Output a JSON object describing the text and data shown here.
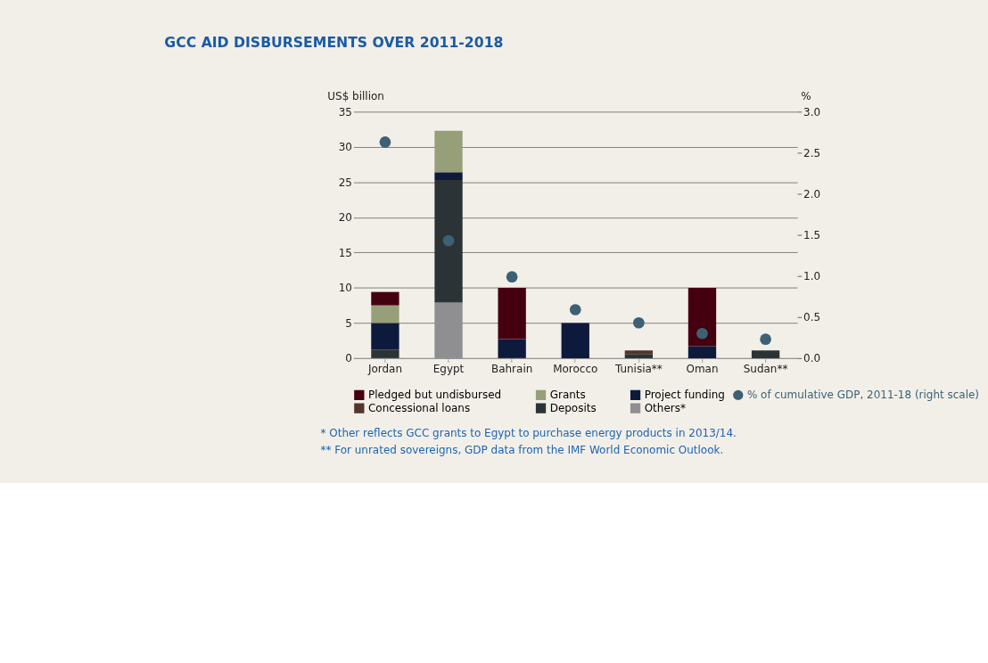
{
  "chart_data": {
    "type": "bar",
    "title": "GCC AID DISBURSEMENTS OVER 2011-2018",
    "ylabel": "US$ billion",
    "y2label": "%",
    "categories": [
      "Jordan",
      "Egypt",
      "Bahrain",
      "Morocco",
      "Tunisia**",
      "Oman",
      "Sudan**"
    ],
    "stacked": true,
    "series": [
      {
        "name": "Others*",
        "color": "#8f8e90",
        "values": [
          0,
          7.9,
          0,
          0,
          0,
          0,
          0
        ]
      },
      {
        "name": "Deposits",
        "color": "#2b3336",
        "values": [
          1.2,
          17.4,
          0,
          0,
          0.6,
          0,
          1.1
        ]
      },
      {
        "name": "Concessional loans",
        "color": "#533530",
        "values": [
          0,
          0,
          0,
          0,
          0.5,
          0,
          0
        ]
      },
      {
        "name": "Project funding",
        "color": "#0e1a3c",
        "values": [
          3.8,
          1.1,
          2.7,
          5.0,
          0,
          1.7,
          0
        ]
      },
      {
        "name": "Grants",
        "color": "#979f78",
        "values": [
          2.5,
          5.9,
          0,
          0,
          0,
          0,
          0
        ]
      },
      {
        "name": "Pledged but undisbursed",
        "color": "#450010",
        "values": [
          1.9,
          0,
          7.3,
          0,
          0,
          8.3,
          0
        ]
      },
      {
        "name": "% of cumulative GDP, 2011-18 (right scale)",
        "type": "scatter",
        "axis": "y2",
        "color": "#3d6075",
        "values": [
          2.63,
          1.43,
          0.99,
          0.59,
          0.43,
          0.3,
          0.23
        ]
      }
    ],
    "ylim": [
      0,
      35
    ],
    "yticks": [
      0,
      5,
      10,
      15,
      20,
      25,
      30,
      35
    ],
    "y2lim": [
      0,
      3.0
    ],
    "y2ticks": [
      {
        "value": 0,
        "label": "0.0"
      },
      0.5,
      {
        "value": 1,
        "label": "1.0"
      },
      1.5,
      {
        "value": 2,
        "label": "2.0"
      },
      2.5,
      {
        "value": 3,
        "label": "3.0"
      }
    ],
    "grid": "y",
    "legend": "bottom",
    "marker": "circle",
    "annotations": [
      "* Other reflects GCC grants to Egypt to purchase energy products in 2013/14.",
      "** For unrated sovereigns, GDP data from the IMF World Economic Outlook."
    ]
  }
}
